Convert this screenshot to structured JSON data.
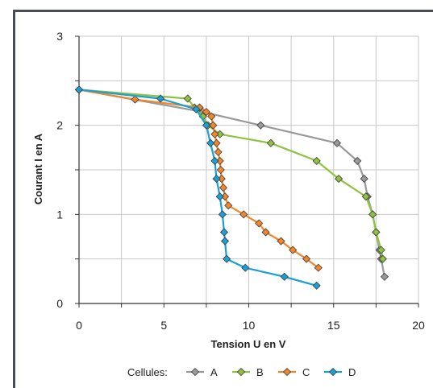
{
  "chart_data": {
    "type": "line",
    "xlabel": "Tension U en V",
    "ylabel": "Courant I en A",
    "xlim": [
      0,
      20
    ],
    "ylim": [
      0,
      3
    ],
    "x_ticks": [
      0,
      5,
      10,
      15,
      20
    ],
    "y_ticks": [
      0,
      1,
      2,
      3
    ],
    "x_grid_step": 2.5,
    "y_grid_step": 0.5,
    "grid": true,
    "legend_title": "Cellules:",
    "legend_position": "bottom",
    "series": [
      {
        "name": "A",
        "color": "#999999",
        "points": [
          [
            0,
            2.4
          ],
          [
            7.3,
            2.15
          ],
          [
            10.7,
            2.0
          ],
          [
            15.2,
            1.8
          ],
          [
            16.4,
            1.6
          ],
          [
            16.8,
            1.4
          ],
          [
            17.0,
            1.2
          ],
          [
            17.3,
            1.0
          ],
          [
            17.5,
            0.8
          ],
          [
            17.7,
            0.6
          ],
          [
            17.8,
            0.5
          ],
          [
            18.0,
            0.3
          ]
        ]
      },
      {
        "name": "B",
        "color": "#8fc33f",
        "points": [
          [
            0,
            2.4
          ],
          [
            6.4,
            2.3
          ],
          [
            6.8,
            2.2
          ],
          [
            7.3,
            2.1
          ],
          [
            7.6,
            2.0
          ],
          [
            8.3,
            1.9
          ],
          [
            11.3,
            1.8
          ],
          [
            14.0,
            1.6
          ],
          [
            15.3,
            1.4
          ],
          [
            16.9,
            1.2
          ],
          [
            17.3,
            1.0
          ],
          [
            17.5,
            0.8
          ],
          [
            17.8,
            0.6
          ],
          [
            17.9,
            0.5
          ]
        ]
      },
      {
        "name": "C",
        "color": "#f0872d",
        "points": [
          [
            0,
            2.4
          ],
          [
            3.3,
            2.29
          ],
          [
            7.1,
            2.2
          ],
          [
            7.5,
            2.15
          ],
          [
            7.8,
            2.1
          ],
          [
            7.9,
            2.0
          ],
          [
            8.0,
            1.9
          ],
          [
            8.1,
            1.8
          ],
          [
            8.2,
            1.7
          ],
          [
            8.3,
            1.6
          ],
          [
            8.35,
            1.5
          ],
          [
            8.4,
            1.4
          ],
          [
            8.5,
            1.3
          ],
          [
            8.6,
            1.2
          ],
          [
            8.8,
            1.1
          ],
          [
            9.7,
            1.0
          ],
          [
            10.6,
            0.9
          ],
          [
            11.0,
            0.8
          ],
          [
            11.9,
            0.7
          ],
          [
            12.6,
            0.6
          ],
          [
            13.4,
            0.5
          ],
          [
            14.1,
            0.4
          ]
        ]
      },
      {
        "name": "D",
        "color": "#1a9fd6",
        "points": [
          [
            0,
            2.4
          ],
          [
            4.8,
            2.3
          ],
          [
            6.9,
            2.18
          ],
          [
            7.5,
            2.0
          ],
          [
            7.75,
            1.8
          ],
          [
            8.0,
            1.6
          ],
          [
            8.1,
            1.4
          ],
          [
            8.3,
            1.2
          ],
          [
            8.45,
            1.0
          ],
          [
            8.55,
            0.8
          ],
          [
            8.6,
            0.7
          ],
          [
            8.7,
            0.5
          ],
          [
            9.8,
            0.4
          ],
          [
            12.1,
            0.3
          ],
          [
            14.0,
            0.2
          ]
        ]
      }
    ]
  }
}
